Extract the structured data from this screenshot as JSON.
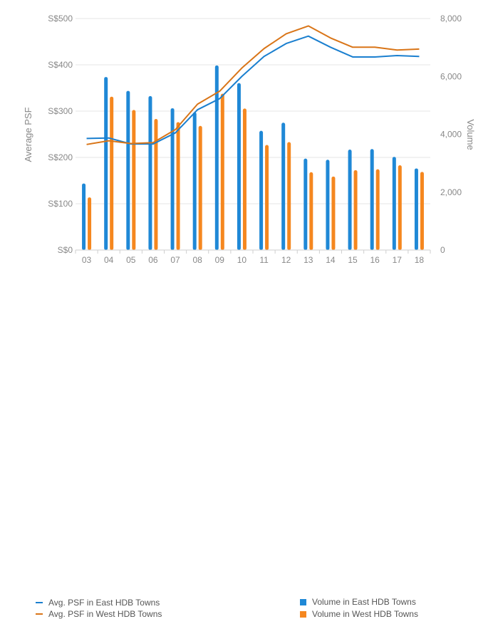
{
  "chart_data": {
    "type": "bar",
    "categories": [
      "03",
      "04",
      "05",
      "06",
      "07",
      "08",
      "09",
      "10",
      "11",
      "12",
      "13",
      "14",
      "15",
      "16",
      "17",
      "18"
    ],
    "left_axis": {
      "label": "Average PSF",
      "ticks": [
        "S$0",
        "S$100",
        "S$200",
        "S$300",
        "S$400",
        "S$500"
      ],
      "tick_values": [
        0,
        100,
        200,
        300,
        400,
        500
      ],
      "ylim": [
        0,
        500
      ]
    },
    "right_axis": {
      "label": "Volume",
      "ticks": [
        "0",
        "2,000",
        "4,000",
        "6,000",
        "8,000"
      ],
      "tick_values": [
        0,
        2000,
        4000,
        6000,
        8000
      ],
      "ylim": [
        0,
        8000
      ]
    },
    "bar_series": [
      {
        "name": "Volume in East HDB Towns",
        "color": "#1f88d6",
        "axis": "right",
        "values": [
          2300,
          5980,
          5500,
          5320,
          4900,
          4760,
          6380,
          5770,
          4120,
          4400,
          3160,
          3120,
          3470,
          3490,
          3220,
          2820
        ]
      },
      {
        "name": "Volume in West HDB Towns",
        "color": "#f5871f",
        "axis": "right",
        "values": [
          1820,
          5300,
          4840,
          4530,
          4420,
          4290,
          5400,
          4890,
          3630,
          3730,
          2690,
          2540,
          2760,
          2790,
          2930,
          2700
        ]
      }
    ],
    "line_series": [
      {
        "name": "Avg. PSF in East HDB Towns",
        "color": "#1a7fcf",
        "axis": "left",
        "values": [
          241,
          242,
          229,
          229,
          253,
          303,
          327,
          375,
          418,
          446,
          462,
          438,
          417,
          417,
          420,
          418
        ]
      },
      {
        "name": "Avg. PSF in West HDB Towns",
        "color": "#d97518",
        "axis": "left",
        "values": [
          228,
          236,
          230,
          232,
          260,
          315,
          343,
          393,
          435,
          467,
          484,
          458,
          438,
          438,
          432,
          434
        ]
      }
    ],
    "grid": "horizontal",
    "legend_position": "bottom"
  },
  "legend": {
    "line_east": "Avg. PSF in East HDB Towns",
    "line_west": "Avg. PSF in West HDB Towns",
    "bar_east": "Volume in East HDB Towns",
    "bar_west": "Volume in West HDB Towns"
  }
}
